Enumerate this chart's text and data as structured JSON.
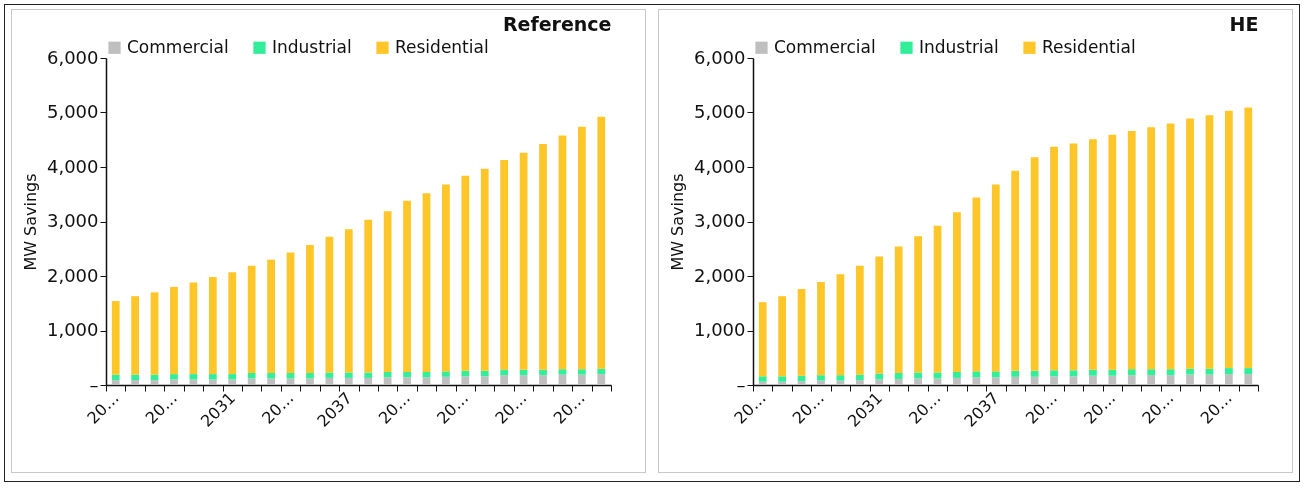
{
  "chart_data": [
    {
      "type": "bar",
      "stacked": true,
      "title": "Reference",
      "ylabel": "MW Savings",
      "legend": "top",
      "grid": false,
      "categories": [
        "20…",
        null,
        null,
        "20…",
        null,
        null,
        "2031",
        null,
        null,
        "20…",
        null,
        null,
        "2037",
        null,
        null,
        "20…",
        null,
        null,
        "20…",
        null,
        null,
        "20…",
        null,
        null,
        "20…",
        null
      ],
      "ylim": [
        0,
        6000
      ],
      "yticks": [
        {
          "value": 0,
          "label": "–"
        },
        {
          "value": 1000,
          "label": "1,000"
        },
        {
          "value": 2000,
          "label": "2,000"
        },
        {
          "value": 3000,
          "label": "3,000"
        },
        {
          "value": 4000,
          "label": "4,000"
        },
        {
          "value": 5000,
          "label": "5,000"
        },
        {
          "value": 6000,
          "label": "6,000"
        }
      ],
      "series": [
        {
          "name": "Commercial",
          "color": "#bfbfbf",
          "values": [
            90,
            90,
            90,
            100,
            100,
            100,
            100,
            120,
            120,
            120,
            120,
            130,
            130,
            130,
            140,
            140,
            140,
            150,
            160,
            160,
            180,
            180,
            180,
            190,
            190,
            200
          ]
        },
        {
          "name": "Industrial",
          "color": "#33ee99",
          "values": [
            100,
            100,
            100,
            100,
            100,
            100,
            100,
            100,
            100,
            100,
            100,
            100,
            100,
            100,
            100,
            100,
            100,
            100,
            100,
            100,
            100,
            100,
            100,
            100,
            100,
            100
          ]
        },
        {
          "name": "Residential",
          "color": "#ffc629",
          "values": [
            1350,
            1440,
            1510,
            1600,
            1680,
            1780,
            1870,
            1970,
            2080,
            2210,
            2350,
            2490,
            2630,
            2800,
            2950,
            3140,
            3280,
            3430,
            3580,
            3710,
            3850,
            3980,
            4140,
            4290,
            4450,
            4620
          ]
        }
      ]
    },
    {
      "type": "bar",
      "stacked": true,
      "title": "HE",
      "ylabel": "MW Savings",
      "legend": "top",
      "grid": false,
      "categories": [
        "20…",
        null,
        null,
        "20…",
        null,
        null,
        "2031",
        null,
        null,
        "20…",
        null,
        null,
        "2037",
        null,
        null,
        "20…",
        null,
        null,
        "20…",
        null,
        null,
        "20…",
        null,
        null,
        "20…",
        null
      ],
      "ylim": [
        0,
        6000
      ],
      "yticks": [
        {
          "value": 0,
          "label": "–"
        },
        {
          "value": 1000,
          "label": "1,000"
        },
        {
          "value": 2000,
          "label": "2,000"
        },
        {
          "value": 3000,
          "label": "3,000"
        },
        {
          "value": 4000,
          "label": "4,000"
        },
        {
          "value": 5000,
          "label": "5,000"
        },
        {
          "value": 6000,
          "label": "6,000"
        }
      ],
      "series": [
        {
          "name": "Commercial",
          "color": "#bfbfbf",
          "values": [
            60,
            60,
            70,
            80,
            80,
            90,
            100,
            110,
            120,
            120,
            130,
            140,
            140,
            150,
            150,
            160,
            160,
            170,
            170,
            180,
            180,
            180,
            190,
            190,
            200,
            200
          ]
        },
        {
          "name": "Industrial",
          "color": "#33ee99",
          "values": [
            100,
            100,
            100,
            100,
            100,
            100,
            110,
            110,
            110,
            110,
            110,
            110,
            110,
            110,
            110,
            110,
            110,
            110,
            110,
            110,
            110,
            110,
            110,
            110,
            110,
            110
          ]
        },
        {
          "name": "Residential",
          "color": "#ffc629",
          "values": [
            1360,
            1470,
            1590,
            1710,
            1850,
            2000,
            2150,
            2320,
            2500,
            2690,
            2930,
            3190,
            3430,
            3670,
            3920,
            4100,
            4160,
            4230,
            4310,
            4370,
            4440,
            4510,
            4590,
            4650,
            4720,
            4780
          ]
        }
      ]
    }
  ]
}
